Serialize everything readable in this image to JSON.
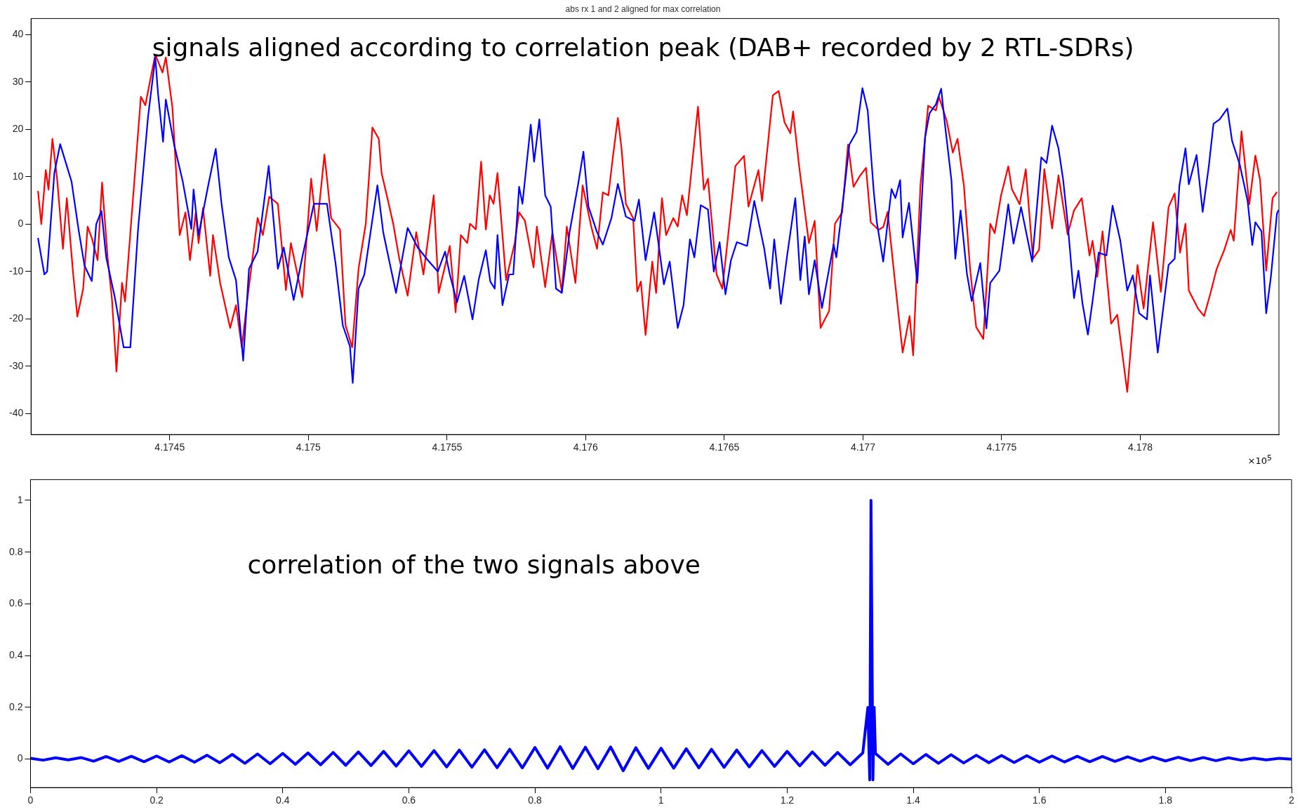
{
  "chart_data": [
    {
      "type": "line",
      "title": "abs rx 1 and 2 aligned for max correlation",
      "annotations": [
        "signals aligned according to correlation peak (DAB+ recorded by 2 RTL-SDRs)",
        "×10$^{5}$"
      ],
      "xlim": [
        4.174,
        4.1785
      ],
      "xticks": [
        4.1745,
        4.175,
        4.1755,
        4.176,
        4.1765,
        4.177,
        4.1775,
        4.178
      ],
      "ylim": [
        -44.4,
        43.4
      ],
      "yticks": [
        -40,
        -30,
        -20,
        -10,
        0,
        10,
        20,
        30,
        40
      ],
      "marker": "none",
      "series": [
        {
          "color": "#0000ff",
          "x": [
            4.174025,
            4.174048,
            4.174058,
            4.174084,
            4.174105,
            4.174146,
            4.174172,
            4.174193,
            4.174219,
            4.174235,
            4.174254,
            4.174271,
            4.174302,
            4.174334,
            4.174358,
            4.174386,
            4.174422,
            4.174448,
            4.174458,
            4.174476,
            4.174486,
            4.174516,
            4.174547,
            4.174578,
            4.174586,
            4.174604,
            4.17464,
            4.174666,
            4.174687,
            4.174713,
            4.174739,
            4.174765,
            4.174786,
            4.174817,
            4.174857,
            4.17489,
            4.174911,
            4.174947,
            4.174978,
            4.17502,
            4.175067,
            4.175098,
            4.175124,
            4.17515,
            4.17516,
            4.175181,
            4.175202,
            4.175249,
            4.17527,
            4.175316,
            4.175358,
            4.175394,
            4.175431,
            4.175467,
            4.175493,
            4.17551,
            4.175536,
            4.175562,
            4.175592,
            4.175614,
            4.17564,
            4.175656,
            4.175672,
            4.175682,
            4.1757,
            4.175724,
            4.175739,
            4.17576,
            4.175772,
            4.175802,
            4.175814,
            4.175833,
            4.175854,
            4.175874,
            4.175893,
            4.175914,
            4.175942,
            4.175973,
            4.175992,
            4.17601,
            4.176041,
            4.176062,
            4.176093,
            4.176116,
            4.176145,
            4.176176,
            4.176192,
            4.176216,
            4.176247,
            4.176268,
            4.176282,
            4.176303,
            4.176332,
            4.176353,
            4.176376,
            4.176392,
            4.176415,
            4.176441,
            4.176462,
            4.176483,
            4.176504,
            4.176524,
            4.176545,
            4.176582,
            4.176608,
            4.176644,
            4.176665,
            4.17668,
            4.176704,
            4.176727,
            4.176756,
            4.176774,
            4.17679,
            4.176805,
            4.176826,
            4.176852,
            4.176878,
            4.176894,
            4.176904,
            4.176935,
            4.176951,
            4.176977,
            4.176998,
            4.177017,
            4.177039,
            4.17705,
            4.177073,
            4.177089,
            4.177103,
            4.177117,
            4.177134,
            4.177143,
            4.177166,
            4.177196,
            4.177224,
            4.17724,
            4.177263,
            4.177282,
            4.177296,
            4.177319,
            4.177333,
            4.177352,
            4.177375,
            4.177392,
            4.177423,
            4.177445,
            4.177459,
            4.177492,
            4.177524,
            4.177543,
            4.17757,
            4.17761,
            4.177643,
            4.177662,
            4.177682,
            4.177705,
            4.177722,
            4.177738,
            4.177761,
            4.177777,
            4.177792,
            4.177811,
            4.177828,
            4.17785,
            4.177878,
            4.1779,
            4.177928,
            4.177953,
            4.177973,
            4.177996,
            4.178024,
            4.178035,
            4.178063,
            4.178102,
            4.178124,
            4.178141,
            4.178163,
            4.178175,
            4.178203,
            4.178225,
            4.178247,
            4.178264,
            4.178286,
            4.178314,
            4.178331,
            4.178359,
            4.178387,
            4.178404,
            4.178415,
            4.178437,
            4.178454,
            4.178471,
            4.178493,
            4.178499
          ],
          "values": [
            -2.9,
            -10.6,
            -10,
            10.8,
            16.9,
            9,
            -1.4,
            -8.8,
            -12,
            0,
            2.8,
            -7,
            -15.4,
            -26,
            -26,
            -1,
            22.7,
            35.2,
            27.5,
            17.4,
            26.3,
            16.8,
            9,
            -1,
            7.3,
            -2.3,
            8.5,
            15.9,
            4.3,
            -7,
            -11.8,
            -28.8,
            -9.4,
            -5.8,
            12.3,
            -9.4,
            -4.9,
            -16,
            -7,
            4.3,
            4.3,
            -8.2,
            -21.3,
            -25.8,
            -33.5,
            -13.6,
            -10.6,
            8.2,
            -1.7,
            -14.5,
            -0.8,
            -4.9,
            -7.6,
            -10,
            -5.8,
            -10.6,
            -16.5,
            -10.9,
            -20.1,
            -11.8,
            -5.5,
            -12.1,
            -13.6,
            -2.3,
            -17.1,
            -10.6,
            -10.6,
            7.9,
            4.3,
            21,
            13.2,
            22.1,
            6.1,
            3.7,
            -13.6,
            -14.5,
            -1.7,
            8.5,
            15.3,
            3.7,
            -1.7,
            -4.3,
            1.3,
            8.5,
            1.6,
            0.7,
            5.2,
            -7.6,
            2.5,
            -6.4,
            -12.7,
            -7.9,
            -21.9,
            -17.1,
            -3.2,
            -7,
            4,
            3.1,
            -10,
            -3.8,
            -14.8,
            -7.6,
            -3.8,
            -4.6,
            4.9,
            -5.2,
            -13.6,
            -3.2,
            -16.8,
            -6.4,
            5.5,
            -11.8,
            -2.6,
            -14.8,
            -7.6,
            -17.7,
            -9.4,
            -4.3,
            -7,
            8.5,
            16.8,
            19.5,
            28.7,
            24,
            6.8,
            0.4,
            -7.9,
            0.4,
            7.4,
            5.5,
            9.3,
            -2.8,
            4.5,
            -12.4,
            18.3,
            23.4,
            25.3,
            28.6,
            20.8,
            9.3,
            -7.3,
            2.9,
            -10.5,
            -16.2,
            -8.2,
            -22,
            -12.4,
            -9.8,
            4.2,
            -4.1,
            3.6,
            -7.9,
            14.1,
            12.9,
            20.8,
            16,
            9.3,
            0.4,
            -15.6,
            -9.8,
            -16.9,
            -23.3,
            -16.2,
            -6,
            -6.6,
            3.9,
            -3.5,
            -14,
            -10.8,
            -18.8,
            -20.1,
            -10.8,
            -27.1,
            -8.6,
            -7.3,
            8.1,
            16,
            8.4,
            14.6,
            2.6,
            12.2,
            21.2,
            22.1,
            24.4,
            17.6,
            12.5,
            4.9,
            -4.4,
            0.4,
            -1.5,
            -18.8,
            -11.1,
            2.3,
            3
          ]
        },
        {
          "color": "#ff0000",
          "x": [
            4.174025,
            4.174037,
            4.174053,
            4.174063,
            4.174077,
            4.174094,
            4.174115,
            4.174129,
            4.174152,
            4.174167,
            4.174188,
            4.174204,
            4.174219,
            4.17424,
            4.174256,
            4.174276,
            4.174292,
            4.174308,
            4.174328,
            4.174339,
            4.174396,
            4.174412,
            4.174448,
            4.174474,
            4.174486,
            4.17451,
            4.174536,
            4.174557,
            4.174573,
            4.174594,
            4.174604,
            4.17462,
            4.174646,
            4.174656,
            4.174682,
            4.174718,
            4.174739,
            4.17476,
            4.174781,
            4.174817,
            4.174836,
            4.174859,
            4.17489,
            4.174919,
            4.174937,
            4.174978,
            4.17501,
            4.17503,
            4.175058,
            4.175082,
            4.175114,
            4.175134,
            4.175158,
            4.175181,
            4.175207,
            4.175231,
            4.175254,
            4.175264,
            4.175285,
            4.175306,
            4.175327,
            4.175358,
            4.175389,
            4.175415,
            4.175452,
            4.17547,
            4.17551,
            4.175531,
            4.17555,
            4.175573,
            4.175583,
            4.175604,
            4.175623,
            4.17564,
            4.175654,
            4.175668,
            4.175682,
            4.175713,
            4.175744,
            4.17576,
            4.175781,
            4.175812,
            4.175824,
            4.175854,
            4.17588,
            4.175914,
            4.175932,
            4.175963,
            4.175989,
            4.17602,
            4.176041,
            4.176062,
            4.176082,
            4.176098,
            4.176116,
            4.176129,
            4.176145,
            4.176171,
            4.176186,
            4.176199,
            4.176216,
            4.17624,
            4.176254,
            4.176275,
            4.17629,
            4.176316,
            4.176332,
            4.176348,
            4.176365,
            4.176405,
            4.176426,
            4.176441,
            4.176472,
            4.176493,
            4.176514,
            4.17654,
            4.176571,
            4.176587,
            4.176623,
            4.176636,
            4.176675,
            4.176696,
            4.176717,
            4.176738,
            4.176748,
            4.176769,
            4.176805,
            4.176826,
            4.176847,
            4.176878,
            4.176899,
            4.176925,
            4.176946,
            4.176966,
            4.176989,
            4.177011,
            4.177028,
            4.177056,
            4.177073,
            4.177089,
            4.177117,
            4.177143,
            4.177168,
            4.177181,
            4.177207,
            4.177235,
            4.177263,
            4.177274,
            4.177302,
            4.177324,
            4.177341,
            4.177364,
            4.177386,
            4.177408,
            4.177434,
            4.177459,
            4.177475,
            4.177498,
            4.177524,
            4.177537,
            4.177565,
            4.177587,
            4.177613,
            4.177635,
            4.177654,
            4.177682,
            4.177705,
            4.177738,
            4.177761,
            4.177789,
            4.177817,
            4.177828,
            4.177845,
            4.177864,
            4.177895,
            4.177917,
            4.177953,
            4.17799,
            4.178012,
            4.178046,
            4.178074,
            4.178102,
            4.178124,
            4.178143,
            4.178163,
            4.178175,
            4.178208,
            4.17823,
            4.178253,
            4.178275,
            4.178303,
            4.178326,
            4.178337,
            4.178365,
            4.178393,
            4.178415,
            4.178432,
            4.178454,
            4.178477,
            4.178493
          ],
          "values": [
            7,
            0,
            11.4,
            7.3,
            18,
            9.6,
            -5.2,
            5.5,
            -10.6,
            -19.5,
            -13.6,
            -0.5,
            -2.9,
            -7.6,
            8.8,
            -7,
            -16,
            -31.1,
            -12.4,
            -16.3,
            26.9,
            25.1,
            35.8,
            32,
            35.2,
            24.5,
            -2.3,
            2.5,
            -7.6,
            2.5,
            -4,
            3.4,
            -10.9,
            -2.3,
            -12.4,
            -21.9,
            -17.1,
            -26,
            -15.4,
            1.3,
            -2.3,
            5.8,
            4.3,
            -13.9,
            -4,
            -15.4,
            9.6,
            -1.4,
            14.7,
            1.3,
            -1.1,
            -21.3,
            -26,
            -9.4,
            0.1,
            20.4,
            18,
            10.8,
            5.5,
            0.1,
            -7,
            -15.1,
            -1.7,
            -10.6,
            6.1,
            -14.5,
            -4.6,
            -18.6,
            -2.3,
            -4,
            0.1,
            -1.1,
            13.2,
            -1.1,
            6.1,
            4.3,
            10.8,
            -11.8,
            -4,
            2.5,
            0.7,
            -9.1,
            -0.5,
            -13.3,
            -1.7,
            -14.2,
            -0.5,
            -12.4,
            8.2,
            -0.5,
            -5.2,
            6.7,
            6.1,
            14.1,
            22.4,
            16.2,
            4.3,
            1.3,
            -14.2,
            -12.1,
            -23.4,
            -7.9,
            -14.5,
            5.5,
            -2.3,
            1.3,
            -0.5,
            6.1,
            1.9,
            24.8,
            7.3,
            9.6,
            -10.6,
            -13.6,
            -2.3,
            12.3,
            14.4,
            3.7,
            11.4,
            4.9,
            27.2,
            28.1,
            21.5,
            19.2,
            23.8,
            12.6,
            -4,
            0.7,
            -21.9,
            -18.3,
            0.1,
            2.5,
            16.8,
            7.9,
            10.2,
            11.9,
            0.4,
            -1.2,
            -0.6,
            2.6,
            -13,
            -27.1,
            -19.4,
            -27.7,
            8.1,
            25,
            24,
            26.9,
            21.8,
            15.1,
            18,
            8.1,
            -9.2,
            -21.7,
            -24.2,
            0.1,
            -1.9,
            6.1,
            12.2,
            7.4,
            4.2,
            11.6,
            -7.3,
            -5.4,
            11.6,
            -0.9,
            10.3,
            -2.2,
            2.9,
            5.5,
            -6.6,
            -3.5,
            -11.1,
            -1.5,
            -21,
            -19.1,
            -35.4,
            -8.6,
            -17.8,
            0.4,
            -14.3,
            3.6,
            6.5,
            -6,
            0.1,
            -14,
            -17.8,
            -19.4,
            -14.6,
            -9.5,
            -5.4,
            -1.2,
            -3.5,
            19.6,
            4.2,
            14.5,
            9.3,
            -9.8,
            5.5,
            6.8
          ]
        }
      ]
    },
    {
      "type": "line",
      "annotations": [
        "correlation of the two signals above"
      ],
      "xlim": [
        0,
        2
      ],
      "xticks": [
        0,
        0.2,
        0.4,
        0.6,
        0.8,
        1,
        1.2,
        1.4,
        1.6,
        1.8,
        2
      ],
      "ylim": [
        -0.11,
        1.08
      ],
      "yticks": [
        0,
        0.2,
        0.4,
        0.6,
        0.8,
        1
      ],
      "marker": "none",
      "series": [
        {
          "color": "#0000ff",
          "x": [
            0,
            0.02,
            0.04,
            0.06,
            0.08,
            0.1,
            0.12,
            0.14,
            0.16,
            0.18,
            0.2,
            0.22,
            0.24,
            0.26,
            0.28,
            0.3,
            0.32,
            0.34,
            0.36,
            0.38,
            0.4,
            0.42,
            0.44,
            0.46,
            0.48,
            0.5,
            0.52,
            0.54,
            0.56,
            0.58,
            0.6,
            0.62,
            0.64,
            0.66,
            0.68,
            0.7,
            0.72,
            0.74,
            0.76,
            0.78,
            0.8,
            0.82,
            0.84,
            0.86,
            0.88,
            0.9,
            0.92,
            0.94,
            0.96,
            0.98,
            1,
            1.02,
            1.04,
            1.06,
            1.08,
            1.1,
            1.12,
            1.14,
            1.16,
            1.18,
            1.2,
            1.22,
            1.24,
            1.26,
            1.28,
            1.3,
            1.32,
            1.328,
            1.331,
            1.333,
            1.336,
            1.338,
            1.34,
            1.36,
            1.38,
            1.4,
            1.42,
            1.44,
            1.46,
            1.48,
            1.5,
            1.52,
            1.54,
            1.56,
            1.58,
            1.6,
            1.62,
            1.64,
            1.66,
            1.68,
            1.7,
            1.72,
            1.74,
            1.76,
            1.78,
            1.8,
            1.82,
            1.84,
            1.86,
            1.88,
            1.9,
            1.92,
            1.94,
            1.96,
            1.98,
            2
          ],
          "values": [
            0.003,
            -0.004,
            0.005,
            -0.003,
            0.006,
            -0.008,
            0.01,
            -0.009,
            0.011,
            -0.01,
            0.012,
            -0.011,
            0.013,
            -0.012,
            0.015,
            -0.014,
            0.018,
            -0.016,
            0.02,
            -0.018,
            0.022,
            -0.02,
            0.024,
            -0.022,
            0.026,
            -0.024,
            0.028,
            -0.025,
            0.03,
            -0.027,
            0.032,
            -0.028,
            0.033,
            -0.03,
            0.035,
            -0.031,
            0.036,
            -0.033,
            0.038,
            -0.034,
            0.045,
            -0.035,
            0.048,
            -0.036,
            0.046,
            -0.037,
            0.047,
            -0.045,
            0.044,
            -0.036,
            0.042,
            -0.035,
            0.04,
            -0.034,
            0.038,
            -0.032,
            0.035,
            -0.03,
            0.033,
            -0.028,
            0.03,
            -0.026,
            0.028,
            -0.024,
            0.026,
            -0.022,
            0.024,
            0.2,
            -0.08,
            1,
            -0.08,
            0.2,
            0.022,
            -0.02,
            0.02,
            -0.018,
            0.018,
            -0.016,
            0.017,
            -0.015,
            0.015,
            -0.014,
            0.014,
            -0.013,
            0.013,
            -0.012,
            0.012,
            -0.011,
            0.011,
            -0.01,
            0.01,
            -0.009,
            0.009,
            -0.008,
            0.008,
            -0.007,
            0.007,
            -0.006,
            0.006,
            -0.006,
            0.005,
            -0.004,
            0.004,
            -0.003,
            0.003,
            0
          ]
        }
      ]
    }
  ]
}
